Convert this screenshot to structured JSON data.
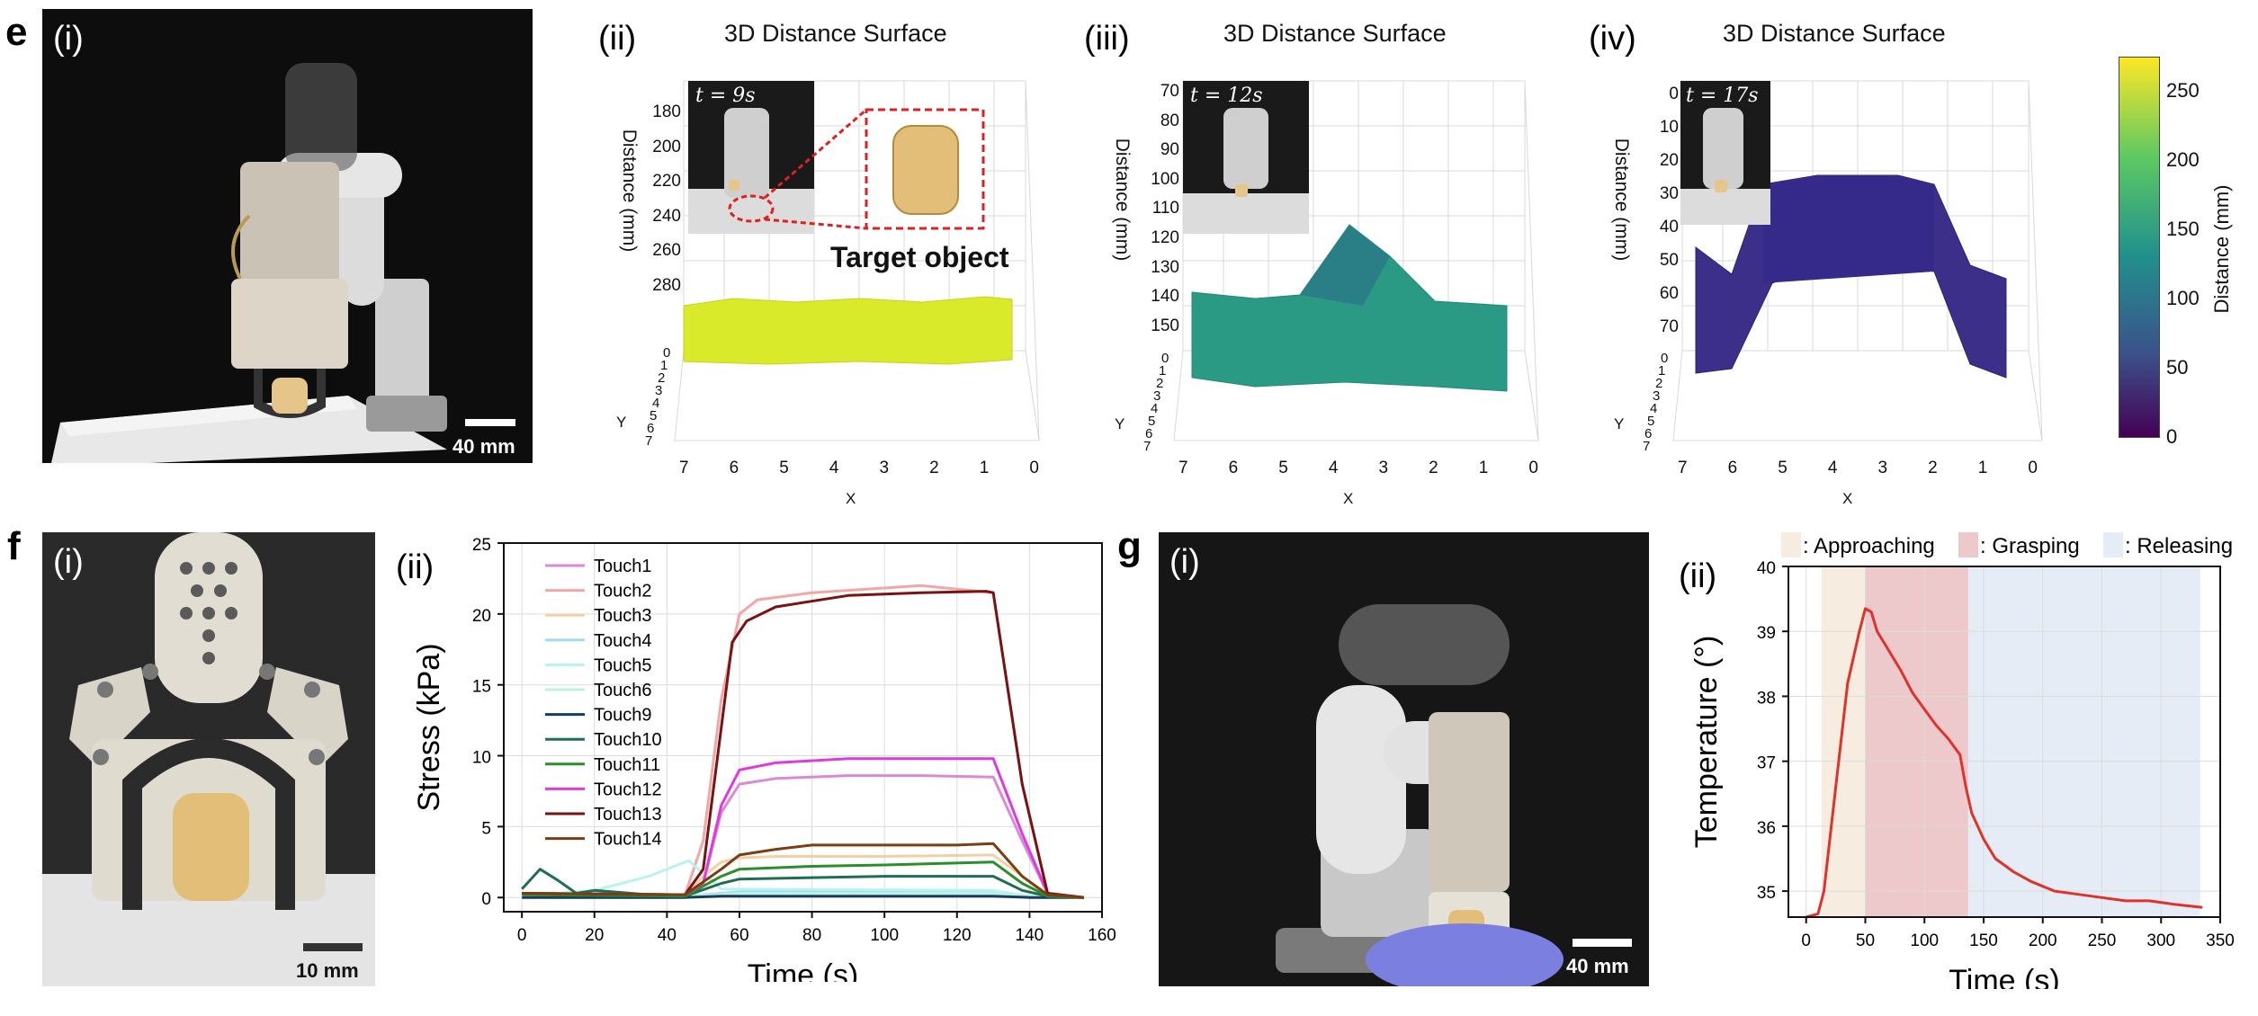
{
  "panel_letters": {
    "e": "e",
    "f": "f",
    "g": "g"
  },
  "panel_e": {
    "photo": {
      "label": "(i)",
      "scale": "40 mm"
    },
    "surfaces": [
      {
        "label": "(ii)",
        "title": "3D Distance Surface",
        "time": "t = 9s",
        "annotation": "Target object",
        "zlabel": "Distance (mm)",
        "z_ticks": [
          "180",
          "200",
          "220",
          "240",
          "260",
          "280"
        ],
        "x_ticks": [
          "7",
          "6",
          "5",
          "4",
          "3",
          "2",
          "1",
          "0"
        ],
        "y_ticks": [
          "0",
          "1",
          "2",
          "3",
          "4",
          "5",
          "6",
          "7"
        ],
        "xlabel": "X",
        "ylabel": "Y",
        "color": "#d9ea2a"
      },
      {
        "label": "(iii)",
        "title": "3D Distance Surface",
        "time": "t = 12s",
        "zlabel": "Distance (mm)",
        "z_ticks": [
          "70",
          "80",
          "90",
          "100",
          "110",
          "120",
          "130",
          "140",
          "150"
        ],
        "x_ticks": [
          "7",
          "6",
          "5",
          "4",
          "3",
          "2",
          "1",
          "0"
        ],
        "y_ticks": [
          "0",
          "1",
          "2",
          "3",
          "4",
          "5",
          "6",
          "7"
        ],
        "xlabel": "X",
        "ylabel": "Y",
        "color": "#2aa08a"
      },
      {
        "label": "(iv)",
        "title": "3D Distance Surface",
        "time": "t = 17s",
        "zlabel": "Distance (mm)",
        "z_ticks": [
          "0",
          "10",
          "20",
          "30",
          "40",
          "50",
          "60",
          "70"
        ],
        "x_ticks": [
          "7",
          "6",
          "5",
          "4",
          "3",
          "2",
          "1",
          "0"
        ],
        "y_ticks": [
          "0",
          "1",
          "2",
          "3",
          "4",
          "5",
          "6",
          "7"
        ],
        "xlabel": "X",
        "ylabel": "Y",
        "color": "#3b2f8a"
      }
    ],
    "colorbar": {
      "label": "Distance (mm)",
      "ticks": [
        "250",
        "200",
        "150",
        "100",
        "50",
        "0"
      ],
      "range": [
        0,
        275
      ]
    }
  },
  "panel_f": {
    "photo": {
      "label": "(i)",
      "scale": "10 mm"
    },
    "chart_label": "(ii)"
  },
  "panel_g": {
    "photo": {
      "label": "(i)",
      "scale": "40 mm"
    },
    "chart_label": "(ii)"
  },
  "chart_data": [
    {
      "type": "line",
      "xlabel": "Time (s)",
      "ylabel": "Stress (kPa)",
      "xlim": [
        -5,
        160
      ],
      "ylim": [
        -1,
        25
      ],
      "x_ticks": [
        0,
        20,
        40,
        60,
        80,
        100,
        120,
        140,
        160
      ],
      "y_ticks": [
        0,
        5,
        10,
        15,
        20,
        25
      ],
      "grid": true,
      "legend_position": "top-left",
      "series": [
        {
          "name": "Touch1",
          "color": "#d98ad6",
          "x": [
            0,
            45,
            50,
            55,
            60,
            70,
            90,
            110,
            130,
            138,
            145,
            155
          ],
          "y": [
            0.3,
            0.2,
            1.0,
            6.0,
            8.0,
            8.4,
            8.6,
            8.6,
            8.5,
            4.0,
            0.3,
            0.0
          ]
        },
        {
          "name": "Touch2",
          "color": "#f2a6a6",
          "x": [
            0,
            45,
            50,
            55,
            60,
            65,
            80,
            110,
            130,
            138,
            145,
            155
          ],
          "y": [
            0.2,
            0.2,
            4.0,
            14.0,
            20.0,
            21.0,
            21.5,
            22.0,
            21.5,
            8.0,
            0.3,
            0.0
          ]
        },
        {
          "name": "Touch3",
          "color": "#f2d0a6",
          "x": [
            0,
            45,
            50,
            55,
            60,
            70,
            100,
            130,
            138,
            145,
            155
          ],
          "y": [
            0.1,
            0.1,
            1.5,
            2.5,
            2.8,
            2.9,
            2.9,
            3.0,
            1.5,
            0.1,
            0.0
          ]
        },
        {
          "name": "Touch4",
          "color": "#a6d8f2",
          "x": [
            0,
            45,
            55,
            60,
            80,
            130,
            140,
            155
          ],
          "y": [
            0.1,
            0.1,
            0.3,
            0.4,
            0.4,
            0.4,
            0.1,
            0.0
          ]
        },
        {
          "name": "Touch5",
          "color": "#b8f2f2",
          "x": [
            0,
            20,
            35,
            42,
            46,
            55,
            130,
            140,
            155
          ],
          "y": [
            0.1,
            0.5,
            1.5,
            2.2,
            2.6,
            0.6,
            0.5,
            0.1,
            0.0
          ]
        },
        {
          "name": "Touch6",
          "color": "#bdf2e0",
          "x": [
            0,
            45,
            55,
            60,
            80,
            130,
            140,
            155
          ],
          "y": [
            0.1,
            0.1,
            0.2,
            0.3,
            0.3,
            0.3,
            0.1,
            0.0
          ]
        },
        {
          "name": "Touch9",
          "color": "#173b5c",
          "x": [
            0,
            45,
            55,
            60,
            80,
            130,
            140,
            155
          ],
          "y": [
            0.0,
            0.0,
            0.1,
            0.1,
            0.1,
            0.1,
            0.0,
            0.0
          ]
        },
        {
          "name": "Touch10",
          "color": "#1f6e54",
          "x": [
            0,
            5,
            10,
            15,
            20,
            40,
            45,
            55,
            60,
            100,
            130,
            138,
            145,
            155
          ],
          "y": [
            0.6,
            2.0,
            1.2,
            0.3,
            0.5,
            0.1,
            0.1,
            1.0,
            1.3,
            1.5,
            1.5,
            0.5,
            0.1,
            0.0
          ]
        },
        {
          "name": "Touch11",
          "color": "#2a8f2a",
          "x": [
            0,
            45,
            55,
            60,
            80,
            100,
            130,
            138,
            145,
            155
          ],
          "y": [
            0.2,
            0.1,
            1.5,
            2.0,
            2.2,
            2.3,
            2.5,
            1.0,
            0.1,
            0.0
          ]
        },
        {
          "name": "Touch12",
          "color": "#dd3bdd",
          "x": [
            0,
            45,
            50,
            55,
            60,
            70,
            90,
            110,
            130,
            138,
            145,
            155
          ],
          "y": [
            0.3,
            0.2,
            1.0,
            6.5,
            9.0,
            9.5,
            9.8,
            9.8,
            9.8,
            4.5,
            0.3,
            0.0
          ]
        },
        {
          "name": "Touch13",
          "color": "#7a1212",
          "x": [
            0,
            45,
            50,
            55,
            58,
            62,
            70,
            90,
            110,
            128,
            130,
            138,
            145,
            155
          ],
          "y": [
            0.3,
            0.2,
            2.0,
            12.0,
            18.0,
            19.5,
            20.5,
            21.3,
            21.5,
            21.6,
            21.5,
            8.0,
            0.3,
            0.0
          ]
        },
        {
          "name": "Touch14",
          "color": "#7a3e12",
          "x": [
            0,
            45,
            55,
            60,
            70,
            80,
            100,
            120,
            130,
            138,
            145,
            155
          ],
          "y": [
            0.3,
            0.2,
            2.0,
            3.0,
            3.4,
            3.7,
            3.7,
            3.7,
            3.8,
            1.5,
            0.2,
            0.0
          ]
        }
      ]
    },
    {
      "type": "line",
      "xlabel": "Time (s)",
      "ylabel": "Temperature (°)",
      "xlim": [
        -15,
        350
      ],
      "ylim": [
        34.6,
        40
      ],
      "x_ticks": [
        0,
        50,
        100,
        150,
        200,
        250,
        300,
        350
      ],
      "y_ticks": [
        35,
        36,
        37,
        38,
        39,
        40
      ],
      "grid": true,
      "legend_position": "top",
      "phases": [
        {
          "name": ": Approaching",
          "start": 13,
          "end": 50,
          "color": "#f6ece0"
        },
        {
          "name": ": Grasping",
          "start": 50,
          "end": 137,
          "color": "#eec9cc"
        },
        {
          "name": ": Releasing",
          "start": 137,
          "end": 333,
          "color": "#e6ecf5"
        }
      ],
      "series": [
        {
          "color": "#e0322a",
          "x": [
            0,
            10,
            15,
            25,
            35,
            45,
            50,
            55,
            60,
            70,
            80,
            90,
            100,
            110,
            120,
            130,
            135,
            140,
            150,
            160,
            175,
            190,
            210,
            230,
            250,
            270,
            290,
            310,
            335
          ],
          "y": [
            34.6,
            34.65,
            35.0,
            36.6,
            38.2,
            39.0,
            39.35,
            39.3,
            39.0,
            38.7,
            38.4,
            38.05,
            37.8,
            37.55,
            37.35,
            37.1,
            36.6,
            36.2,
            35.8,
            35.5,
            35.3,
            35.15,
            35.0,
            34.95,
            34.9,
            34.85,
            34.85,
            34.8,
            34.75
          ]
        }
      ]
    }
  ]
}
